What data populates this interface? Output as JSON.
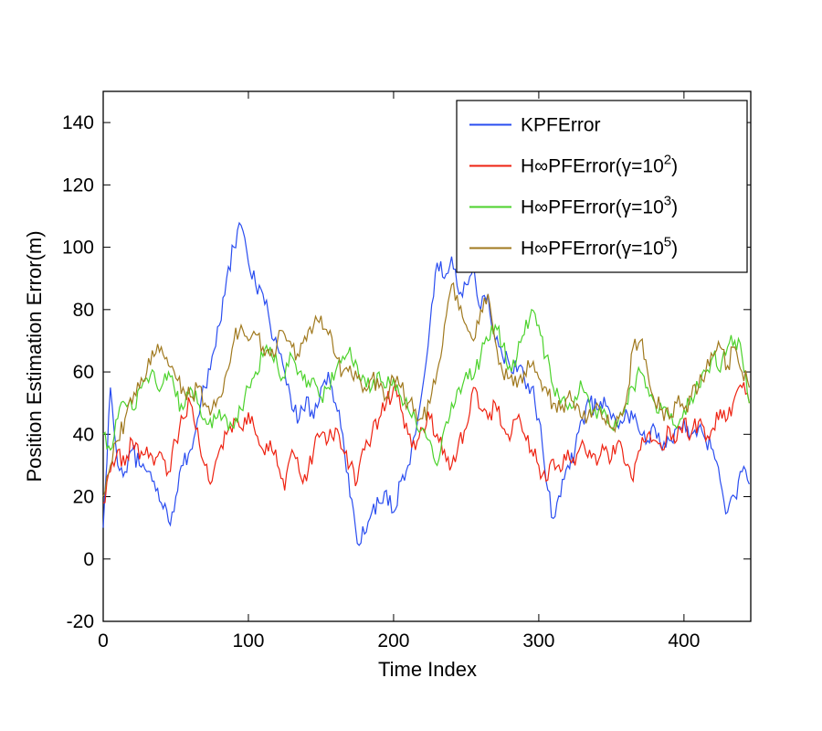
{
  "figure": {
    "background": "#ffffff"
  },
  "chart_data": {
    "type": "line",
    "title": "",
    "xlabel": "Time Index",
    "ylabel": "Position Estimation Error(m)",
    "xlim": [
      0,
      446
    ],
    "ylim": [
      -20,
      150
    ],
    "xticks": [
      0,
      100,
      200,
      300,
      400
    ],
    "yticks": [
      -20,
      0,
      20,
      40,
      60,
      80,
      100,
      120,
      140
    ],
    "grid": false,
    "legend_position": "top-right",
    "x_start": 0,
    "x_step": 5,
    "series": [
      {
        "id": "kpf-error",
        "label": {
          "text": "KPFError",
          "sup": "",
          "post": ""
        },
        "color": "#2a4df0",
        "values": [
          10,
          55,
          30,
          28,
          35,
          30,
          28,
          25,
          18,
          12,
          20,
          30,
          35,
          45,
          55,
          65,
          75,
          90,
          100,
          107,
          95,
          88,
          85,
          75,
          68,
          60,
          48,
          45,
          52,
          45,
          55,
          60,
          50,
          40,
          20,
          5,
          8,
          15,
          18,
          22,
          15,
          25,
          30,
          40,
          55,
          75,
          95,
          90,
          97,
          85,
          88,
          95,
          80,
          85,
          70,
          65,
          62,
          60,
          58,
          55,
          45,
          25,
          13,
          20,
          30,
          35,
          45,
          50,
          48,
          52,
          45,
          42,
          48,
          45,
          40,
          38,
          42,
          35,
          38,
          42,
          45,
          40,
          42,
          38,
          35,
          25,
          15,
          20,
          28,
          24
        ]
      },
      {
        "id": "hinf-error-g1e2",
        "label": {
          "text": "H∞PFError(γ=10",
          "sup": "2",
          "post": ")"
        },
        "color": "#ee2211",
        "values": [
          18,
          28,
          35,
          30,
          38,
          32,
          36,
          30,
          34,
          28,
          38,
          45,
          50,
          42,
          30,
          25,
          35,
          40,
          45,
          42,
          47,
          40,
          35,
          38,
          30,
          22,
          35,
          28,
          25,
          35,
          40,
          38,
          42,
          35,
          30,
          25,
          35,
          40,
          45,
          50,
          55,
          48,
          40,
          35,
          42,
          45,
          40,
          35,
          30,
          38,
          42,
          55,
          48,
          45,
          50,
          42,
          38,
          45,
          40,
          35,
          30,
          25,
          32,
          28,
          35,
          30,
          38,
          35,
          30,
          35,
          32,
          38,
          30,
          25,
          35,
          40,
          38,
          35,
          42,
          38,
          45,
          40,
          44,
          38,
          42,
          48,
          45,
          52,
          55,
          50
        ]
      },
      {
        "id": "hinf-error-g1e3",
        "label": {
          "text": "H∞PFError(γ=10",
          "sup": "3",
          "post": ")"
        },
        "color": "#4bd22b",
        "values": [
          40,
          35,
          45,
          50,
          48,
          55,
          58,
          60,
          55,
          60,
          52,
          48,
          55,
          50,
          45,
          42,
          48,
          45,
          42,
          48,
          55,
          60,
          65,
          68,
          62,
          58,
          65,
          60,
          55,
          58,
          52,
          55,
          60,
          65,
          68,
          62,
          58,
          55,
          60,
          55,
          58,
          52,
          48,
          45,
          42,
          38,
          30,
          42,
          50,
          55,
          60,
          58,
          65,
          70,
          75,
          68,
          62,
          65,
          72,
          80,
          75,
          65,
          55,
          50,
          48,
          52,
          55,
          50,
          45,
          48,
          42,
          45,
          50,
          55,
          60,
          55,
          50,
          48,
          45,
          42,
          48,
          52,
          55,
          60,
          65,
          60,
          68,
          70,
          65,
          50
        ]
      },
      {
        "id": "hinf-error-g1e5",
        "label": {
          "text": "H∞PFError(γ=10",
          "sup": "5",
          "post": ")"
        },
        "color": "#a0791e",
        "values": [
          20,
          30,
          38,
          45,
          50,
          55,
          60,
          65,
          68,
          62,
          58,
          55,
          52,
          55,
          50,
          48,
          52,
          60,
          70,
          75,
          70,
          72,
          68,
          65,
          70,
          72,
          68,
          65,
          70,
          75,
          78,
          72,
          65,
          60,
          62,
          58,
          55,
          58,
          55,
          52,
          58,
          55,
          50,
          48,
          45,
          50,
          60,
          75,
          88,
          80,
          75,
          70,
          80,
          85,
          70,
          60,
          58,
          55,
          60,
          62,
          58,
          55,
          50,
          48,
          52,
          48,
          45,
          48,
          50,
          45,
          42,
          45,
          50,
          68,
          70,
          60,
          50,
          48,
          45,
          50,
          48,
          52,
          55,
          60,
          65,
          68,
          62,
          68,
          60,
          55
        ]
      }
    ]
  }
}
